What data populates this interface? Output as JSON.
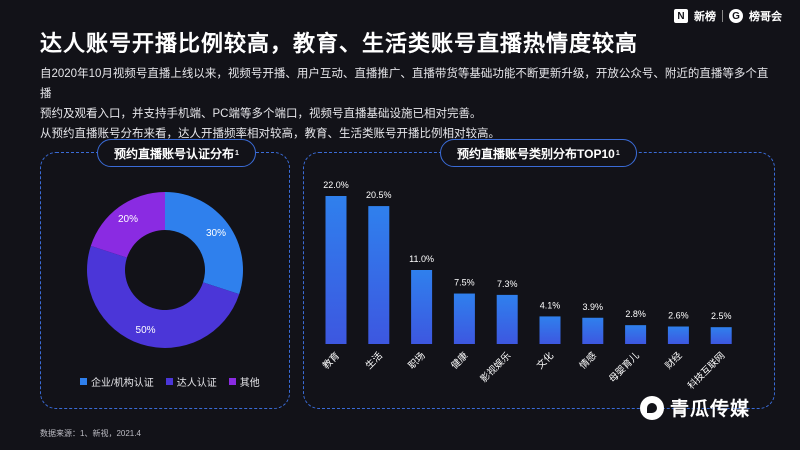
{
  "logos": {
    "brand1": "新榜",
    "brand2": "榜哥会"
  },
  "title": "达人账号开播比例较高，教育、生活类账号直播热情度较高",
  "description": [
    "自2020年10月视频号直播上线以来，视频号开播、用户互动、直播推广、直播带货等基础功能不断更新升级，开放公众号、附近的直播等多个直播",
    "预约及观看入口，并支持手机端、PC端等多个端口，视频号直播基础设施已相对完善。",
    "从预约直播账号分布来看，达人开播频率相对较高，教育、生活类账号开播比例相对较高。"
  ],
  "left_panel": {
    "title": "预约直播账号认证分布",
    "sup": "1"
  },
  "right_panel": {
    "title": "预约直播账号类别分布TOP10",
    "sup": "1"
  },
  "source": "数据来源：1、新视，2021.4",
  "brand": "青瓜传媒",
  "colors": {
    "blue": "#2f80ed",
    "indigo": "#4b36d8",
    "purple": "#8a2be2"
  },
  "chart_data": [
    {
      "type": "pie",
      "title": "预约直播账号认证分布",
      "categories": [
        "企业/机构认证",
        "达人认证",
        "其他"
      ],
      "values": [
        30,
        50,
        20
      ],
      "labels": [
        "30%",
        "50%",
        "20%"
      ],
      "colors": [
        "#2f80ed",
        "#4b36d8",
        "#8a2be2"
      ]
    },
    {
      "type": "bar",
      "title": "预约直播账号类别分布TOP10",
      "categories": [
        "教育",
        "生活",
        "职场",
        "健康",
        "影视娱乐",
        "文化",
        "情感",
        "母婴育儿",
        "财经",
        "科技互联网"
      ],
      "values": [
        22.0,
        20.5,
        11.0,
        7.5,
        7.3,
        4.1,
        3.9,
        2.8,
        2.6,
        2.5
      ],
      "labels": [
        "22.0%",
        "20.5%",
        "11.0%",
        "7.5%",
        "7.3%",
        "4.1%",
        "3.9%",
        "2.8%",
        "2.6%",
        "2.5%"
      ]
    }
  ]
}
